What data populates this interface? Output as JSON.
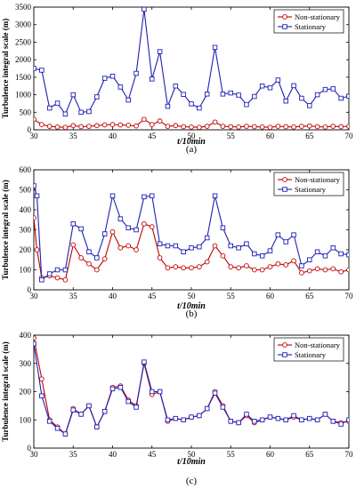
{
  "chart_data": [
    {
      "type": "line",
      "panel_label": "(a)",
      "xlabel": "t/10min",
      "ylabel": "Turbulence integral scale (m)",
      "xlim": [
        30,
        70
      ],
      "ylim": [
        0,
        3500
      ],
      "xticks": [
        30,
        35,
        40,
        45,
        50,
        55,
        60,
        65,
        70
      ],
      "yticks": [
        0,
        500,
        1000,
        1500,
        2000,
        2500,
        3000,
        3500
      ],
      "legend_position": "top-right",
      "x": [
        30,
        31,
        32,
        33,
        34,
        35,
        36,
        37,
        38,
        39,
        40,
        41,
        42,
        43,
        44,
        45,
        46,
        47,
        48,
        49,
        50,
        51,
        52,
        53,
        54,
        55,
        56,
        57,
        58,
        59,
        60,
        61,
        62,
        63,
        64,
        65,
        66,
        67,
        68,
        69,
        70
      ],
      "series": [
        {
          "name": "Non-stationary",
          "color": "#c00000",
          "marker": "circle",
          "values": [
            300,
            150,
            100,
            80,
            70,
            120,
            90,
            100,
            120,
            140,
            150,
            140,
            130,
            110,
            300,
            150,
            250,
            100,
            120,
            90,
            80,
            70,
            100,
            220,
            100,
            90,
            80,
            100,
            90,
            80,
            70,
            100,
            90,
            80,
            100,
            110,
            90,
            80,
            100,
            90,
            100
          ]
        },
        {
          "name": "Stationary",
          "color": "#1f1fb4",
          "marker": "square",
          "values": [
            1750,
            1700,
            620,
            760,
            450,
            1000,
            500,
            520,
            940,
            1470,
            1530,
            1220,
            850,
            1610,
            3440,
            1450,
            2230,
            670,
            1250,
            1010,
            740,
            620,
            1020,
            2350,
            1020,
            1050,
            990,
            720,
            950,
            1250,
            1200,
            1420,
            820,
            1260,
            900,
            690,
            1000,
            1150,
            1170,
            900,
            960
          ]
        }
      ]
    },
    {
      "type": "line",
      "panel_label": "(b)",
      "xlabel": "t/10min",
      "ylabel": "Turbulence integral scale (m)",
      "xlim": [
        30,
        70
      ],
      "ylim": [
        0,
        600
      ],
      "xticks": [
        30,
        35,
        40,
        45,
        50,
        55,
        60,
        65,
        70
      ],
      "yticks": [
        0,
        100,
        200,
        300,
        400,
        500,
        600
      ],
      "legend_position": "top-right",
      "x": [
        30,
        30.4,
        31,
        32,
        33,
        34,
        35,
        36,
        37,
        38,
        39,
        40,
        41,
        42,
        43,
        44,
        45,
        46,
        47,
        48,
        49,
        50,
        51,
        52,
        53,
        54,
        55,
        56,
        57,
        58,
        59,
        60,
        61,
        62,
        63,
        64,
        65,
        66,
        67,
        68,
        69,
        70
      ],
      "series": [
        {
          "name": "Non-stationary",
          "color": "#c00000",
          "marker": "circle",
          "values": [
            360,
            200,
            60,
            70,
            60,
            50,
            225,
            160,
            130,
            100,
            155,
            290,
            210,
            220,
            200,
            330,
            315,
            160,
            110,
            115,
            110,
            110,
            115,
            140,
            220,
            170,
            115,
            110,
            120,
            100,
            100,
            115,
            130,
            125,
            145,
            85,
            95,
            105,
            100,
            105,
            90,
            100
          ]
        },
        {
          "name": "Stationary",
          "color": "#1f1fb4",
          "marker": "square",
          "values": [
            520,
            470,
            50,
            80,
            100,
            100,
            330,
            305,
            190,
            160,
            280,
            470,
            355,
            310,
            300,
            465,
            470,
            230,
            220,
            220,
            190,
            210,
            215,
            260,
            470,
            310,
            220,
            210,
            230,
            180,
            170,
            195,
            275,
            240,
            275,
            120,
            150,
            190,
            170,
            210,
            180,
            175
          ]
        }
      ]
    },
    {
      "type": "line",
      "panel_label": "(c)",
      "xlabel": "t/10min",
      "ylabel": "Turbulence integral scale (m)",
      "xlim": [
        30,
        70
      ],
      "ylim": [
        0,
        400
      ],
      "xticks": [
        30,
        35,
        40,
        45,
        50,
        55,
        60,
        65,
        70
      ],
      "yticks": [
        0,
        100,
        200,
        300,
        400
      ],
      "legend_position": "top-right",
      "x": [
        30,
        31,
        32,
        33,
        34,
        35,
        36,
        37,
        38,
        39,
        40,
        41,
        42,
        43,
        44,
        45,
        46,
        47,
        48,
        49,
        50,
        51,
        52,
        53,
        54,
        55,
        56,
        57,
        58,
        59,
        60,
        61,
        62,
        63,
        64,
        65,
        66,
        67,
        68,
        69,
        70
      ],
      "series": [
        {
          "name": "Non-stationary",
          "color": "#c00000",
          "marker": "circle",
          "values": [
            390,
            245,
            100,
            75,
            50,
            140,
            120,
            150,
            75,
            130,
            215,
            220,
            170,
            150,
            300,
            190,
            200,
            95,
            105,
            100,
            110,
            115,
            140,
            200,
            150,
            95,
            90,
            115,
            90,
            100,
            110,
            105,
            100,
            110,
            100,
            105,
            100,
            120,
            95,
            90,
            95
          ]
        },
        {
          "name": "Stationary",
          "color": "#1f1fb4",
          "marker": "square",
          "values": [
            370,
            185,
            95,
            70,
            50,
            135,
            120,
            150,
            75,
            130,
            210,
            215,
            165,
            145,
            305,
            200,
            200,
            100,
            105,
            100,
            110,
            115,
            140,
            195,
            145,
            95,
            90,
            120,
            95,
            100,
            110,
            105,
            100,
            115,
            100,
            105,
            100,
            120,
            95,
            85,
            100
          ]
        }
      ]
    }
  ]
}
